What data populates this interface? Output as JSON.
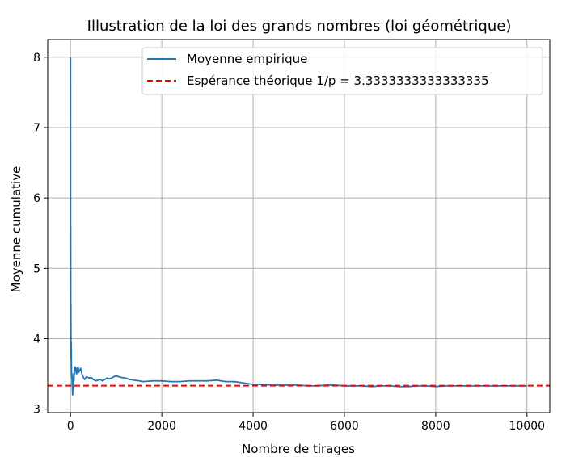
{
  "chart_data": {
    "type": "line",
    "title": "Illustration de la loi des grands nombres (loi géométrique)",
    "xlabel": "Nombre de tirages",
    "ylabel": "Moyenne cumulative",
    "xlim": [
      -500,
      10500
    ],
    "ylim": [
      2.95,
      8.25
    ],
    "xticks": [
      0,
      2000,
      4000,
      6000,
      8000,
      10000
    ],
    "yticks": [
      3,
      4,
      5,
      6,
      7,
      8
    ],
    "grid": true,
    "legend_position": "top-right",
    "series": [
      {
        "name": "Moyenne empirique",
        "style": "solid",
        "color": "#1f77b4",
        "x": [
          1,
          2,
          3,
          4,
          5,
          6,
          8,
          10,
          13,
          16,
          20,
          25,
          30,
          35,
          40,
          45,
          50,
          55,
          60,
          65,
          70,
          75,
          80,
          90,
          100,
          110,
          120,
          135,
          150,
          165,
          180,
          200,
          220,
          250,
          280,
          310,
          350,
          400,
          450,
          500,
          550,
          600,
          650,
          700,
          750,
          800,
          850,
          900,
          950,
          1000,
          1100,
          1200,
          1300,
          1400,
          1500,
          1600,
          1800,
          2000,
          2200,
          2400,
          2600,
          2800,
          3000,
          3200,
          3400,
          3600,
          3800,
          4000,
          4200,
          4400,
          4600,
          4800,
          5000,
          5200,
          5400,
          5600,
          5800,
          6000,
          6200,
          6400,
          6600,
          6800,
          7000,
          7200,
          7400,
          7600,
          7800,
          8000,
          8200,
          8400,
          8600,
          8800,
          9000,
          9200,
          9400,
          9600,
          9800,
          10000
        ],
        "values": [
          8.0,
          5.5,
          4.7,
          5.6,
          4.6,
          4.2,
          4.5,
          3.9,
          3.7,
          3.95,
          3.6,
          3.45,
          3.5,
          3.35,
          3.3,
          3.2,
          3.25,
          3.35,
          3.28,
          3.45,
          3.5,
          3.4,
          3.55,
          3.5,
          3.6,
          3.55,
          3.58,
          3.5,
          3.58,
          3.6,
          3.52,
          3.55,
          3.58,
          3.5,
          3.45,
          3.42,
          3.46,
          3.44,
          3.45,
          3.42,
          3.4,
          3.41,
          3.42,
          3.4,
          3.42,
          3.44,
          3.43,
          3.44,
          3.46,
          3.47,
          3.45,
          3.44,
          3.42,
          3.41,
          3.4,
          3.39,
          3.4,
          3.4,
          3.39,
          3.39,
          3.4,
          3.4,
          3.4,
          3.41,
          3.39,
          3.39,
          3.37,
          3.35,
          3.35,
          3.34,
          3.34,
          3.34,
          3.34,
          3.33,
          3.33,
          3.34,
          3.34,
          3.33,
          3.33,
          3.33,
          3.32,
          3.33,
          3.33,
          3.32,
          3.32,
          3.33,
          3.33,
          3.32,
          3.33,
          3.33,
          3.33,
          3.33,
          3.33,
          3.33,
          3.33,
          3.33,
          3.33,
          3.33
        ]
      },
      {
        "name": "Espérance théorique 1/p = 3.3333333333333335",
        "style": "dashed",
        "color": "#ff0000",
        "value": 3.3333333333333335
      }
    ]
  }
}
